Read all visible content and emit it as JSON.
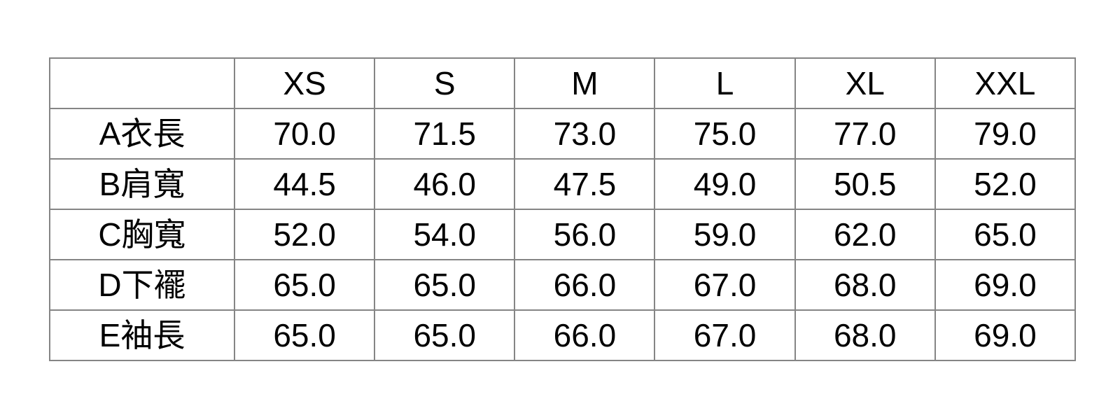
{
  "page": {
    "background_color": "#ffffff",
    "text_color": "#000000",
    "grid_line_color": "#858585"
  },
  "table": {
    "corner_label": "",
    "columns": [
      "XS",
      "S",
      "M",
      "L",
      "XL",
      "XXL"
    ],
    "rows": [
      {
        "label": "A衣長",
        "values": [
          "70.0",
          "71.5",
          "73.0",
          "75.0",
          "77.0",
          "79.0"
        ]
      },
      {
        "label": "B肩寬",
        "values": [
          "44.5",
          "46.0",
          "47.5",
          "49.0",
          "50.5",
          "52.0"
        ]
      },
      {
        "label": "C胸寬",
        "values": [
          "52.0",
          "54.0",
          "56.0",
          "59.0",
          "62.0",
          "65.0"
        ]
      },
      {
        "label": "D下襬",
        "values": [
          "65.0",
          "65.0",
          "66.0",
          "67.0",
          "68.0",
          "69.0"
        ]
      },
      {
        "label": "E袖長",
        "values": [
          "65.0",
          "65.0",
          "66.0",
          "67.0",
          "68.0",
          "69.0"
        ]
      }
    ]
  },
  "chart_data": {
    "type": "table",
    "title": "",
    "categories": [
      "XS",
      "S",
      "M",
      "L",
      "XL",
      "XXL"
    ],
    "series": [
      {
        "name": "A衣長",
        "values": [
          70.0,
          71.5,
          73.0,
          75.0,
          77.0,
          79.0
        ]
      },
      {
        "name": "B肩寬",
        "values": [
          44.5,
          46.0,
          47.5,
          49.0,
          50.5,
          52.0
        ]
      },
      {
        "name": "C胸寬",
        "values": [
          52.0,
          54.0,
          56.0,
          59.0,
          62.0,
          65.0
        ]
      },
      {
        "name": "D下襬",
        "values": [
          65.0,
          65.0,
          66.0,
          67.0,
          68.0,
          69.0
        ]
      },
      {
        "name": "E袖長",
        "values": [
          65.0,
          65.0,
          66.0,
          67.0,
          68.0,
          69.0
        ]
      }
    ],
    "layout": {
      "grid": true,
      "legend": false,
      "header_row": true,
      "label_column": true
    }
  }
}
